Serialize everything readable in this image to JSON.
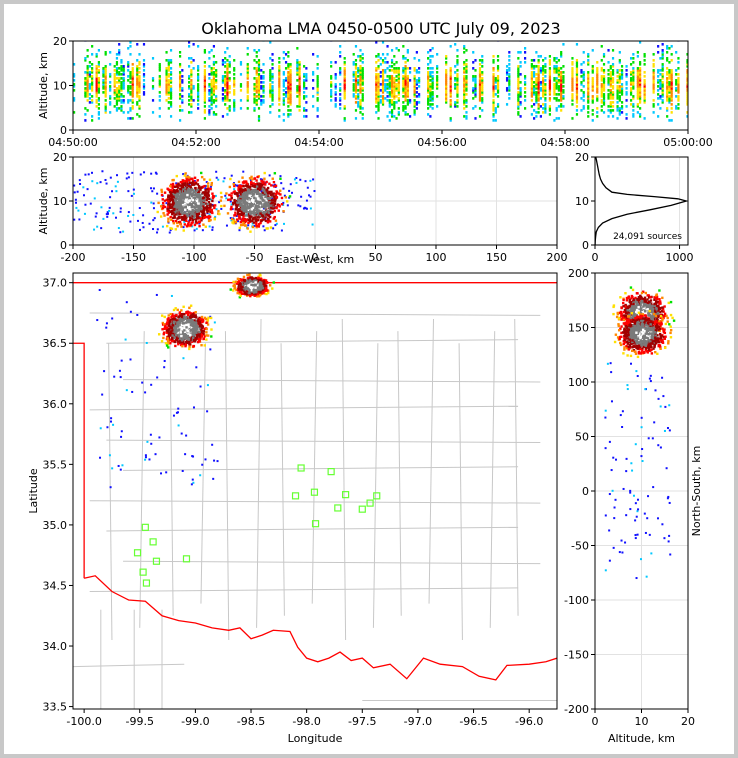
{
  "chart_data": [
    {
      "type": "heatmap",
      "panel": "altitude-time",
      "title": "Oklahoma LMA 0450-0500 UTC July 09, 2023",
      "ylabel": "Altitude, km",
      "x_tick_labels": [
        "04:50:00",
        "04:52:00",
        "04:54:00",
        "04:56:00",
        "04:58:00",
        "05:00:00"
      ],
      "xlim": [
        "04:50:00",
        "05:00:00"
      ],
      "y_ticks": [
        0,
        10,
        20
      ],
      "ylim": [
        0,
        20
      ],
      "altitude_band_km": [
        2,
        20
      ],
      "peak_altitude_km": 10
    },
    {
      "type": "heatmap",
      "panel": "altitude-eastwest",
      "xlabel": "East-West, km",
      "ylabel": "Altitude, km",
      "x_ticks": [
        -200,
        -150,
        -100,
        -50,
        0,
        50,
        100,
        150,
        200
      ],
      "xlim": [
        -200,
        200
      ],
      "y_ticks": [
        0,
        10,
        20
      ],
      "ylim": [
        0,
        20
      ],
      "cores_ew_km": [
        -105,
        -50
      ],
      "core_altitude_km": 10,
      "grid": true
    },
    {
      "type": "line",
      "panel": "altitude-histogram",
      "annotation": "24,091 sources",
      "x_ticks": [
        0,
        1000
      ],
      "xlim": [
        0,
        1100
      ],
      "y_ticks": [
        0,
        10,
        20
      ],
      "ylim": [
        0,
        20
      ],
      "x": [
        1,
        3,
        8,
        15,
        40,
        90,
        200,
        380,
        650,
        900,
        1080,
        980,
        700,
        380,
        200,
        130,
        90,
        65,
        50,
        40,
        35,
        30,
        25,
        20,
        15,
        8
      ],
      "y": [
        0,
        1,
        2,
        3,
        4,
        5,
        6,
        7,
        8,
        9,
        10,
        10.5,
        11,
        11.5,
        12,
        13,
        14,
        15,
        16,
        17,
        17.5,
        18,
        18.5,
        19,
        19.5,
        20
      ]
    },
    {
      "type": "scatter",
      "panel": "plan-view",
      "xlabel": "Longitude",
      "ylabel": "Latitude",
      "x_ticks": [
        -100.0,
        -99.5,
        -99.0,
        -98.5,
        -98.0,
        -97.5,
        -97.0,
        -96.5,
        -96.0
      ],
      "xlim": [
        -100.1,
        -95.75
      ],
      "y_ticks": [
        33.5,
        34.0,
        34.5,
        35.0,
        35.5,
        36.0,
        36.5,
        37.0
      ],
      "ylim": [
        33.48,
        37.08
      ],
      "source_clusters": [
        {
          "lon": -99.1,
          "lat": 36.63
        },
        {
          "lon": -98.5,
          "lat": 36.98
        }
      ],
      "stations": [
        [
          -98.05,
          35.47
        ],
        [
          -97.78,
          35.44
        ],
        [
          -97.93,
          35.27
        ],
        [
          -98.1,
          35.24
        ],
        [
          -97.65,
          35.25
        ],
        [
          -97.37,
          35.24
        ],
        [
          -97.43,
          35.18
        ],
        [
          -97.72,
          35.14
        ],
        [
          -97.5,
          35.13
        ],
        [
          -97.92,
          35.01
        ],
        [
          -99.45,
          34.98
        ],
        [
          -99.38,
          34.86
        ],
        [
          -99.52,
          34.77
        ],
        [
          -99.35,
          34.7
        ],
        [
          -99.08,
          34.72
        ],
        [
          -99.47,
          34.61
        ],
        [
          -99.44,
          34.52
        ]
      ]
    },
    {
      "type": "heatmap",
      "panel": "northsouth-altitude",
      "xlabel": "Altitude, km",
      "ylabel": "North-South, km",
      "x_ticks": [
        0,
        10,
        20
      ],
      "xlim": [
        0,
        20
      ],
      "y_ticks": [
        -200,
        -150,
        -100,
        -50,
        0,
        50,
        100,
        150,
        200
      ],
      "ylim": [
        -200,
        200
      ],
      "cores_ns_km": [
        165,
        145
      ],
      "core_altitude_km": 10
    }
  ]
}
